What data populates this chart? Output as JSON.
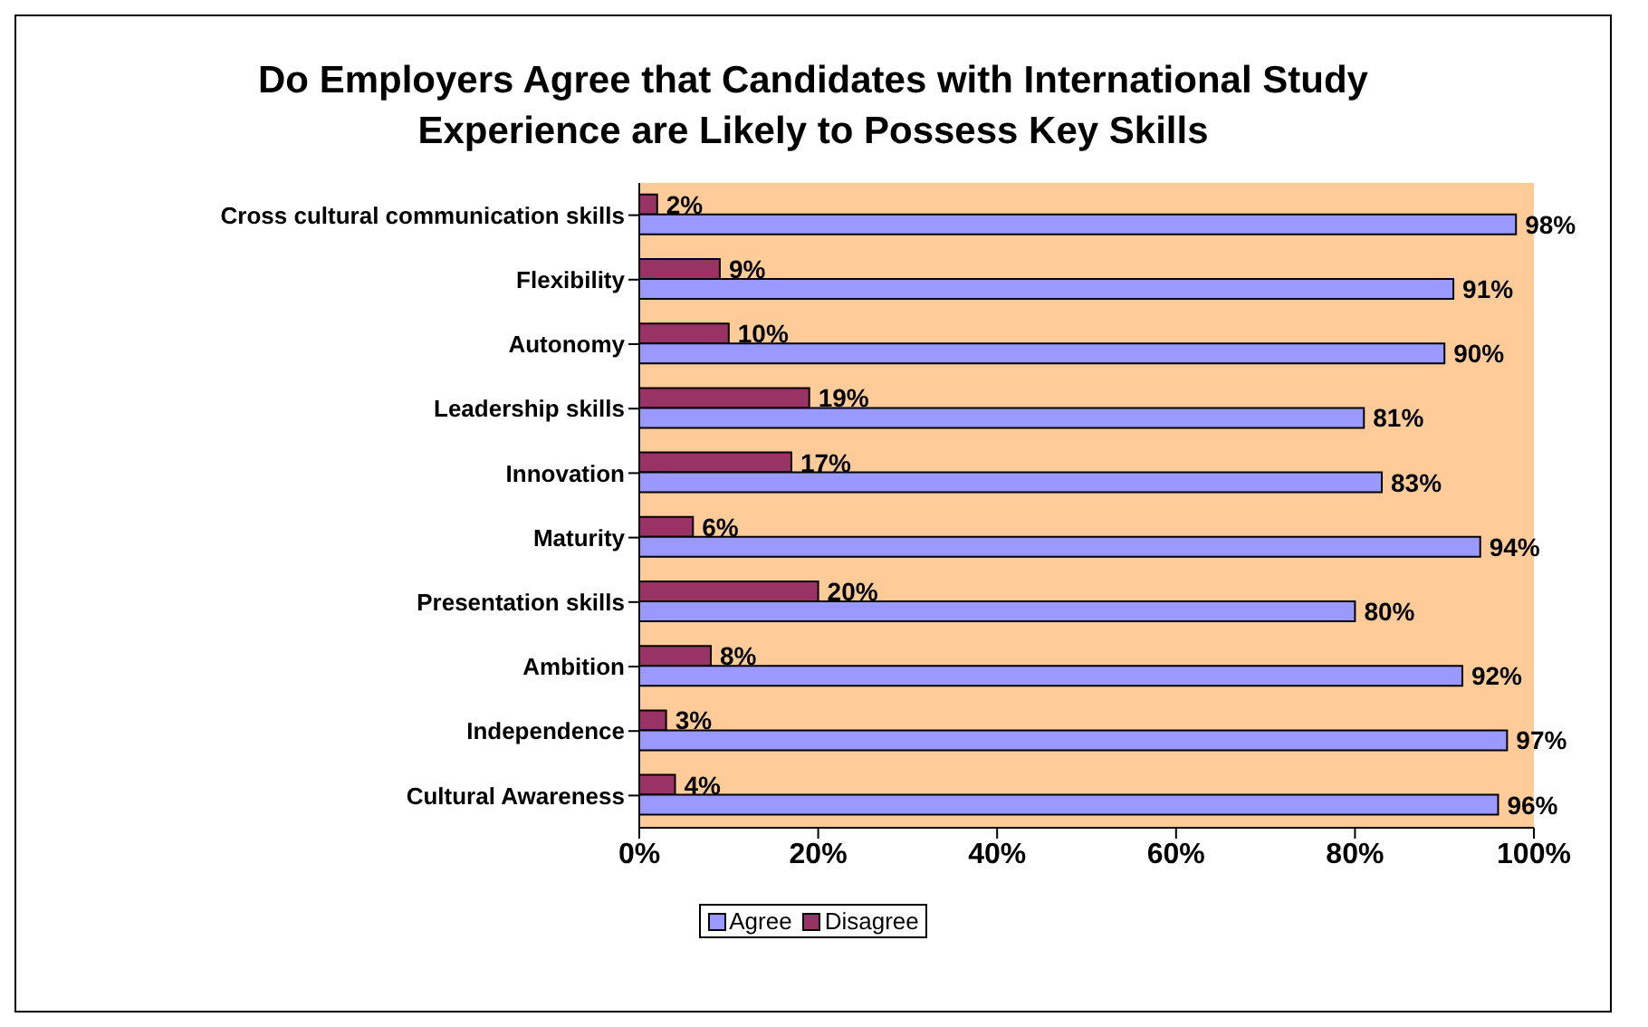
{
  "chart_data": {
    "type": "bar",
    "orientation": "horizontal",
    "title": "Do Employers Agree that Candidates with International Study Experience are Likely to Possess Key Skills",
    "categories": [
      "Cross cultural communication skills",
      "Flexibility",
      "Autonomy",
      "Leadership skills",
      "Innovation",
      "Maturity",
      "Presentation skills",
      "Ambition",
      "Independence",
      "Cultural Awareness"
    ],
    "series": [
      {
        "name": "Agree",
        "color": "#9999ff",
        "values": [
          98,
          91,
          90,
          81,
          83,
          94,
          80,
          92,
          97,
          96
        ],
        "value_labels": [
          "98%",
          "91%",
          "90%",
          "81%",
          "83%",
          "94%",
          "80%",
          "92%",
          "97%",
          "96%"
        ]
      },
      {
        "name": "Disagree",
        "color": "#993366",
        "values": [
          2,
          9,
          10,
          19,
          17,
          6,
          20,
          8,
          3,
          4
        ],
        "value_labels": [
          "2%",
          "9%",
          "10%",
          "19%",
          "17%",
          "6%",
          "20%",
          "8%",
          "3%",
          "4%"
        ]
      }
    ],
    "xlim": [
      0,
      100
    ],
    "xticks": [
      {
        "value": 0,
        "label": "0%"
      },
      {
        "value": 20,
        "label": "20%"
      },
      {
        "value": 40,
        "label": "40%"
      },
      {
        "value": 60,
        "label": "60%"
      },
      {
        "value": 80,
        "label": "80%"
      },
      {
        "value": 100,
        "label": "100%"
      }
    ],
    "grid": false,
    "legend": "bottom"
  }
}
